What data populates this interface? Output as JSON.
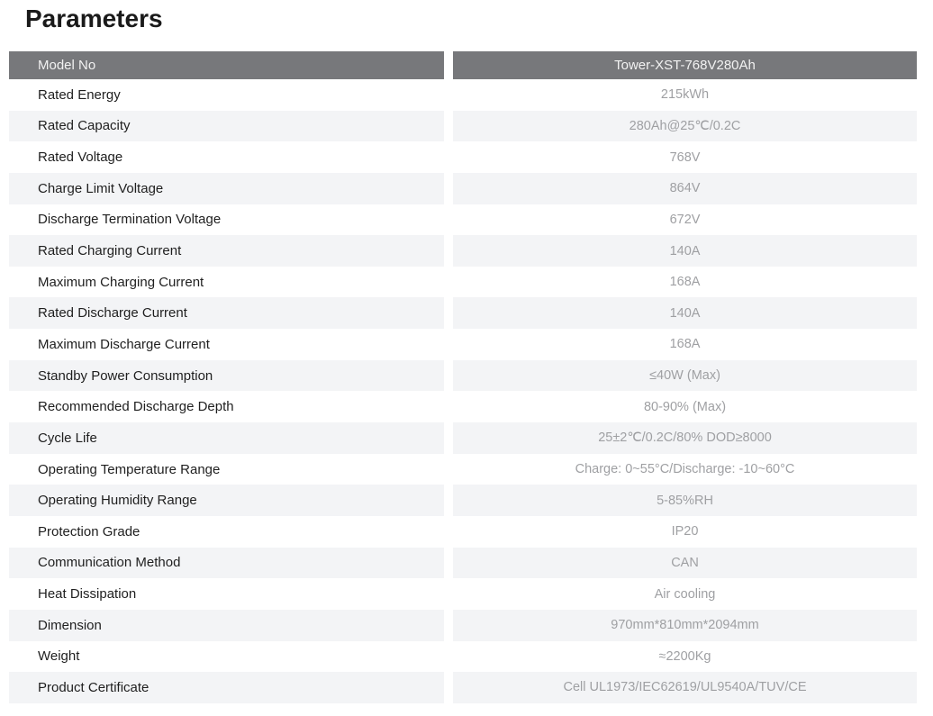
{
  "title": "Parameters",
  "table": {
    "header": {
      "label": "Model No",
      "value": "Tower-XST-768V280Ah"
    },
    "rows": [
      {
        "label": "Rated Energy",
        "value": "215kWh"
      },
      {
        "label": "Rated Capacity",
        "value": "280Ah@25℃/0.2C"
      },
      {
        "label": "Rated Voltage",
        "value": "768V"
      },
      {
        "label": "Charge Limit Voltage",
        "value": "864V"
      },
      {
        "label": "Discharge Termination Voltage",
        "value": "672V"
      },
      {
        "label": "Rated Charging Current",
        "value": "140A"
      },
      {
        "label": "Maximum Charging Current",
        "value": "168A"
      },
      {
        "label": "Rated Discharge Current",
        "value": "140A"
      },
      {
        "label": "Maximum Discharge Current",
        "value": "168A"
      },
      {
        "label": "Standby Power Consumption",
        "value": "≤40W (Max)"
      },
      {
        "label": "Recommended Discharge Depth",
        "value": "80-90% (Max)"
      },
      {
        "label": "Cycle Life",
        "value": "25±2℃/0.2C/80% DOD≥8000"
      },
      {
        "label": "Operating Temperature Range",
        "value": "Charge: 0~55°C/Discharge: -10~60°C"
      },
      {
        "label": "Operating Humidity Range",
        "value": "5-85%RH"
      },
      {
        "label": "Protection Grade",
        "value": "IP20"
      },
      {
        "label": "Communication Method",
        "value": "CAN"
      },
      {
        "label": "Heat Dissipation",
        "value": "Air cooling"
      },
      {
        "label": "Dimension",
        "value": "970mm*810mm*2094mm"
      },
      {
        "label": "Weight",
        "value": "≈2200Kg"
      },
      {
        "label": "Product Certificate",
        "value": "Cell UL1973/IEC62619/UL9540A/TUV/CE"
      }
    ],
    "colors": {
      "header_bg": "#77787b",
      "header_text": "#f2f2f2",
      "row_alt_bg": "#f3f4f6",
      "label_text": "#1f1f1f",
      "value_text": "#9fa0a3"
    }
  }
}
